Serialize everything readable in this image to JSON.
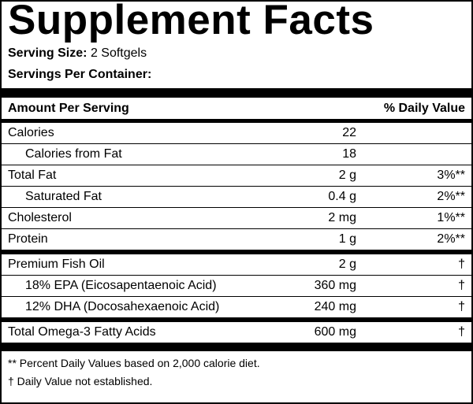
{
  "header": {
    "title": "Supplement Facts",
    "serving_size_label": "Serving Size:",
    "serving_size": "2 Softgels",
    "servings_per_container_label": "Servings Per Container:"
  },
  "table": {
    "columns": [
      "Amount Per Serving",
      "% Daily Value"
    ],
    "groups": [
      [
        {
          "name": "Calories",
          "amount": "22",
          "sub": [
            {
              "name": "Calories from Fat",
              "amount": "18"
            }
          ]
        },
        {
          "name": "Total Fat",
          "amount": "2 g",
          "daily_value": "3%**",
          "sub": [
            {
              "name": "Saturated Fat",
              "amount": "0.4 g",
              "daily_value": "2%**"
            }
          ]
        },
        {
          "name": "Cholesterol",
          "amount": "2 mg",
          "daily_value": "1%**"
        },
        {
          "name": "Protein",
          "amount": "1 g",
          "daily_value": "2%**"
        }
      ],
      [
        {
          "name": "Premium Fish Oil",
          "amount": "2 g",
          "daily_value": "†",
          "sub": [
            {
              "name": "18% EPA (Eicosapentaenoic Acid)",
              "amount": "360 mg",
              "daily_value": "†"
            },
            {
              "name": "12% DHA (Docosahexaenoic Acid)",
              "amount": "240 mg",
              "daily_value": "†"
            }
          ]
        }
      ],
      [
        {
          "name": "Total Omega-3 Fatty Acids",
          "amount": "600 mg",
          "daily_value": "†"
        }
      ]
    ]
  },
  "footnotes": [
    "** Percent Daily Values based on 2,000 calorie diet.",
    "† Daily Value not established."
  ]
}
